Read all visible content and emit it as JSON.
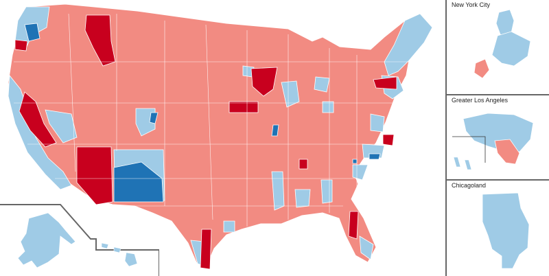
{
  "insets": {
    "nyc": {
      "title": "New York City"
    },
    "la": {
      "title": "Greater Los Angeles"
    },
    "chicago": {
      "title": "Chicagoland"
    }
  },
  "legend_colors": {
    "strong_rep": "#c8001e",
    "lean_rep": "#f28b82",
    "lean_dem": "#9fcbe6",
    "strong_dem": "#1f73b5",
    "border": "#ffffff",
    "frame": "#666666"
  }
}
